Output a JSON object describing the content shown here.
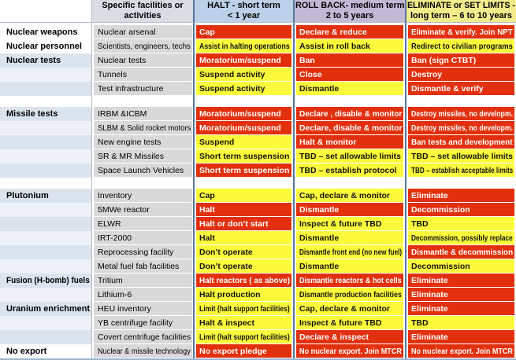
{
  "colors": {
    "red": "#e2300d",
    "yellow": "#fbfb3b",
    "halt_header_bg": "#bcd0e8",
    "rollback_header_bg": "#c3b9d7",
    "eliminate_header_bg": "#f2ec8c",
    "band_dark": "#dbe3ee",
    "band_light": "#edf1f7",
    "facility_bg": "#d9d9d9",
    "facility_header_bg": "#d9dce3",
    "divider_blue": "#54769e"
  },
  "header": {
    "corner": "",
    "facilities": [
      "Specific facilities or",
      "activities"
    ],
    "halt": [
      "HALT - short term",
      "< 1 year"
    ],
    "rollback": [
      "ROLL BACK-  medium term",
      "2 to 5 years"
    ],
    "eliminate": [
      "ELIMINATE or SET LIMITS -",
      "long term – 6 to 10 years"
    ]
  },
  "legend": {
    "red_meaning": "red cell",
    "yellow_meaning": "yellow cell"
  },
  "rows": [
    {
      "type": "row",
      "band": "white",
      "category": "Nuclear weapons",
      "facility": "Nuclear arsenal",
      "halt": {
        "text": "Cap",
        "level": "red"
      },
      "rollback": {
        "text": "Declare & reduce",
        "level": "red"
      },
      "eliminate": {
        "text": "Eliminate & verify. Join NPT",
        "level": "red"
      }
    },
    {
      "type": "row",
      "band": "white",
      "category": "Nuclear personnel",
      "facility": "Scientists, engineers, techs",
      "halt": {
        "text": "Assist in halting operations",
        "level": "yellow"
      },
      "rollback": {
        "text": "Assist in roll back",
        "level": "yellow"
      },
      "eliminate": {
        "text": "Redirect to civilian programs",
        "level": "yellow"
      }
    },
    {
      "type": "row",
      "band": "dark",
      "category": "Nuclear tests",
      "facility": "Nuclear tests",
      "halt": {
        "text": "Moratorium/suspend",
        "level": "red"
      },
      "rollback": {
        "text": "Ban",
        "level": "red"
      },
      "eliminate": {
        "text": "Ban (sign CTBT)",
        "level": "red"
      }
    },
    {
      "type": "row",
      "band": "light",
      "category": "",
      "facility": "Tunnels",
      "halt": {
        "text": "Suspend activity",
        "level": "yellow"
      },
      "rollback": {
        "text": "Close",
        "level": "red"
      },
      "eliminate": {
        "text": "Destroy",
        "level": "red"
      }
    },
    {
      "type": "row",
      "band": "dark",
      "category": "",
      "facility": "Test infrastructure",
      "halt": {
        "text": "Suspend activity",
        "level": "yellow"
      },
      "rollback": {
        "text": "Dismantle",
        "level": "yellow"
      },
      "eliminate": {
        "text": "Dismantle & verify",
        "level": "red"
      }
    },
    {
      "type": "spacer"
    },
    {
      "type": "row",
      "band": "dark",
      "category": "Missile tests",
      "facility": "IRBM &ICBM",
      "halt": {
        "text": "Moratorium/suspend",
        "level": "red"
      },
      "rollback": {
        "text": "Declare , disable & monitor",
        "level": "red"
      },
      "eliminate": {
        "text": "Destroy missiles, no developm.",
        "level": "red"
      }
    },
    {
      "type": "row",
      "band": "light",
      "category": "",
      "facility": "SLBM & Solid rocket motors",
      "halt": {
        "text": "Moratorium/suspend",
        "level": "red"
      },
      "rollback": {
        "text": "Declare, disable & monitor",
        "level": "red"
      },
      "eliminate": {
        "text": "Destroy missiles, no developm.",
        "level": "red"
      }
    },
    {
      "type": "row",
      "band": "dark",
      "category": "",
      "facility": "New engine tests",
      "halt": {
        "text": "Suspend",
        "level": "yellow"
      },
      "rollback": {
        "text": "Halt & monitor",
        "level": "red"
      },
      "eliminate": {
        "text": "Ban tests and development",
        "level": "red"
      }
    },
    {
      "type": "row",
      "band": "light",
      "category": "",
      "facility": "SR & MR Missiles",
      "halt": {
        "text": "Short term suspension",
        "level": "yellow"
      },
      "rollback": {
        "text": "TBD – set allowable limits",
        "level": "yellow"
      },
      "eliminate": {
        "text": "TBD – set allowable limits",
        "level": "yellow"
      }
    },
    {
      "type": "row",
      "band": "dark",
      "category": "",
      "facility": "Space Launch Vehicles",
      "halt": {
        "text": "Short term suspension",
        "level": "red"
      },
      "rollback": {
        "text": "TBD – establish protocol",
        "level": "yellow"
      },
      "eliminate": {
        "text": "TBD – establish acceptable limits",
        "level": "yellow"
      }
    },
    {
      "type": "spacer"
    },
    {
      "type": "row",
      "band": "dark",
      "category": "Plutonium",
      "facility": "Inventory",
      "halt": {
        "text": "Cap",
        "level": "yellow"
      },
      "rollback": {
        "text": "Cap, declare & monitor",
        "level": "yellow"
      },
      "eliminate": {
        "text": "Eliminate",
        "level": "red"
      }
    },
    {
      "type": "row",
      "band": "light",
      "category": "",
      "facility": "5MWe reactor",
      "halt": {
        "text": "Halt",
        "level": "red"
      },
      "rollback": {
        "text": "Dismantle",
        "level": "red"
      },
      "eliminate": {
        "text": "Decommission",
        "level": "red"
      }
    },
    {
      "type": "row",
      "band": "dark",
      "category": "",
      "facility": "ELWR",
      "halt": {
        "text": "Halt or don’t start",
        "level": "red"
      },
      "rollback": {
        "text": "Inspect & future TBD",
        "level": "yellow"
      },
      "eliminate": {
        "text": "TBD",
        "level": "yellow"
      }
    },
    {
      "type": "row",
      "band": "light",
      "category": "",
      "facility": "IRT-2000",
      "halt": {
        "text": "Halt",
        "level": "yellow"
      },
      "rollback": {
        "text": "Dismantle",
        "level": "yellow"
      },
      "eliminate": {
        "text": "Decommission, possibly replace",
        "level": "yellow"
      }
    },
    {
      "type": "row",
      "band": "dark",
      "category": "",
      "facility": "Reprocessing facility",
      "halt": {
        "text": "Don’t operate",
        "level": "yellow"
      },
      "rollback": {
        "text": "Dismantle front end (no new fuel)",
        "level": "yellow"
      },
      "eliminate": {
        "text": "Dismantle & decommission",
        "level": "red"
      }
    },
    {
      "type": "row",
      "band": "light",
      "category": "",
      "facility": "Metal fuel fab facilities",
      "halt": {
        "text": "Don’t operate",
        "level": "yellow"
      },
      "rollback": {
        "text": "Dismantle",
        "level": "yellow"
      },
      "eliminate": {
        "text": "Decommission",
        "level": "yellow"
      }
    },
    {
      "type": "row",
      "band": "dark",
      "category": "Fusion (H-bomb) fuels",
      "facility": "Tritium",
      "halt": {
        "text": "Halt reactors ( as above)",
        "level": "red"
      },
      "rollback": {
        "text": "Dismantle reactors & hot cells",
        "level": "red"
      },
      "eliminate": {
        "text": "Eliminate",
        "level": "red"
      }
    },
    {
      "type": "row",
      "band": "light",
      "category": "",
      "facility": "Lithium-6",
      "halt": {
        "text": "Halt production",
        "level": "yellow"
      },
      "rollback": {
        "text": "Dismantle production facilities",
        "level": "yellow"
      },
      "eliminate": {
        "text": "Eliminate",
        "level": "red"
      }
    },
    {
      "type": "row",
      "band": "dark",
      "category": "Uranium enrichment",
      "facility": "HEU inventory",
      "halt": {
        "text": "Limit (halt support facilities)",
        "level": "yellow"
      },
      "rollback": {
        "text": "Cap, declare & monitor",
        "level": "yellow"
      },
      "eliminate": {
        "text": "Eliminate",
        "level": "red"
      }
    },
    {
      "type": "row",
      "band": "light",
      "category": "",
      "facility": "YB centrifuge facility",
      "halt": {
        "text": "Halt & inspect",
        "level": "yellow"
      },
      "rollback": {
        "text": "Inspect & future TBD",
        "level": "yellow"
      },
      "eliminate": {
        "text": "TBD",
        "level": "yellow"
      }
    },
    {
      "type": "row",
      "band": "dark",
      "category": "",
      "facility": "Covert centrifuge facilities",
      "halt": {
        "text": "Limit (halt support facilities)",
        "level": "yellow"
      },
      "rollback": {
        "text": "Declare & inspect",
        "level": "red"
      },
      "eliminate": {
        "text": "Eliminate",
        "level": "red"
      }
    },
    {
      "type": "row",
      "band": "white",
      "category": "No export",
      "facility": "Nuclear & missile technology",
      "halt": {
        "text": "No export pledge",
        "level": "red"
      },
      "rollback": {
        "text": "No nuclear export. Join MTCR",
        "level": "red"
      },
      "eliminate": {
        "text": "No nuclear export. Join MTCR",
        "level": "red"
      }
    }
  ]
}
